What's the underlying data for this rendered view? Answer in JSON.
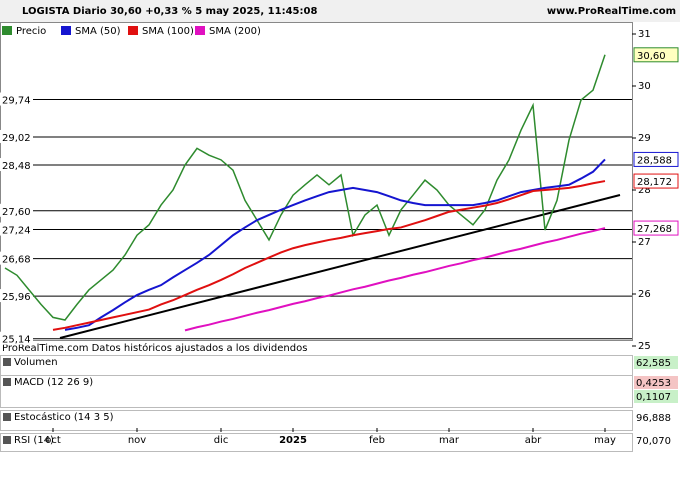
{
  "header": {
    "title": "LOGISTA Diario 30,60 +0,33 % 5 may 2025, 11:45:08",
    "site": "www.ProRealTime.com"
  },
  "footer": "ProRealTime.com Datos históricos ajustados a los dividendos",
  "chart_data": {
    "type": "line",
    "categories": [
      null,
      null,
      null,
      null,
      "oct",
      null,
      null,
      null,
      null,
      null,
      null,
      "nov",
      null,
      null,
      null,
      null,
      null,
      null,
      "dic",
      null,
      null,
      null,
      null,
      null,
      "2025",
      null,
      null,
      null,
      null,
      null,
      null,
      "feb",
      null,
      null,
      null,
      null,
      null,
      "mar",
      null,
      null,
      null,
      null,
      null,
      null,
      "abr",
      null,
      null,
      null,
      null,
      null,
      "may"
    ],
    "series": [
      {
        "name": "Precio",
        "color": "#2e8b2e",
        "last_label": "30,60",
        "values": [
          26.5,
          26.36,
          26.08,
          25.8,
          25.55,
          25.5,
          25.8,
          26.08,
          26.27,
          26.46,
          26.75,
          27.13,
          27.33,
          27.71,
          28.0,
          28.48,
          28.8,
          28.67,
          28.58,
          28.38,
          27.8,
          27.42,
          27.04,
          27.52,
          27.9,
          28.1,
          28.29,
          28.1,
          28.29,
          27.13,
          27.52,
          27.71,
          27.13,
          27.62,
          27.9,
          28.19,
          28.0,
          27.71,
          27.52,
          27.33,
          27.62,
          28.19,
          28.58,
          29.15,
          29.63,
          27.23,
          27.8,
          28.96,
          29.73,
          29.92,
          30.6
        ]
      },
      {
        "name": "SMA (50)",
        "color": "#1515d0",
        "last_label": "28,588",
        "values": [
          null,
          null,
          null,
          null,
          null,
          25.31,
          25.35,
          25.4,
          25.55,
          25.69,
          25.84,
          25.98,
          26.08,
          26.17,
          26.32,
          26.46,
          26.6,
          26.75,
          26.94,
          27.13,
          27.28,
          27.42,
          27.52,
          27.62,
          27.71,
          27.8,
          27.88,
          27.96,
          28.0,
          28.04,
          28.0,
          27.96,
          27.88,
          27.8,
          27.75,
          27.71,
          27.71,
          27.71,
          27.71,
          27.71,
          27.75,
          27.8,
          27.88,
          27.96,
          28.0,
          28.04,
          28.07,
          28.1,
          28.22,
          28.35,
          28.588
        ]
      },
      {
        "name": "SMA (100)",
        "color": "#e01010",
        "last_label": "28,172",
        "values": [
          null,
          null,
          null,
          null,
          25.31,
          25.35,
          25.4,
          25.45,
          25.5,
          25.55,
          25.6,
          25.65,
          25.7,
          25.8,
          25.88,
          25.98,
          26.08,
          26.17,
          26.27,
          26.38,
          26.5,
          26.6,
          26.7,
          26.8,
          26.88,
          26.94,
          26.99,
          27.04,
          27.08,
          27.13,
          27.17,
          27.21,
          27.25,
          27.28,
          27.35,
          27.42,
          27.5,
          27.58,
          27.62,
          27.66,
          27.7,
          27.75,
          27.82,
          27.9,
          27.98,
          28.0,
          28.02,
          28.04,
          28.08,
          28.13,
          28.172
        ]
      },
      {
        "name": "SMA (200)",
        "color": "#e010c0",
        "last_label": "27,268",
        "values": [
          null,
          null,
          null,
          null,
          null,
          null,
          null,
          null,
          null,
          null,
          null,
          null,
          null,
          null,
          null,
          25.3,
          25.36,
          25.41,
          25.47,
          25.52,
          25.58,
          25.64,
          25.69,
          25.75,
          25.81,
          25.86,
          25.92,
          25.97,
          26.03,
          26.09,
          26.14,
          26.2,
          26.26,
          26.31,
          26.37,
          26.42,
          26.48,
          26.54,
          26.59,
          26.65,
          26.7,
          26.76,
          26.82,
          26.87,
          26.93,
          26.99,
          27.04,
          27.1,
          27.16,
          27.21,
          27.268
        ]
      }
    ],
    "ylim": [
      25,
      31.25
    ],
    "yticks": [
      25,
      26,
      27,
      28,
      29,
      30,
      31
    ],
    "levels": [
      {
        "value": 29.74,
        "label": "29,74"
      },
      {
        "value": 29.02,
        "label": "29,02"
      },
      {
        "value": 28.48,
        "label": "28,48"
      },
      {
        "value": 27.6,
        "label": "27,60"
      },
      {
        "value": 27.24,
        "label": "27,24"
      },
      {
        "value": 26.68,
        "label": "26,68"
      },
      {
        "value": 25.96,
        "label": "25,96"
      },
      {
        "value": 25.14,
        "label": "25,14"
      }
    ]
  },
  "panels": [
    {
      "name": "Volumen",
      "labels": [
        {
          "text": "62,585",
          "color": "#c8f0c8"
        }
      ]
    },
    {
      "name": "MACD (12 26 9)",
      "labels": [
        {
          "text": "0,4253",
          "color": "#f4c4c4"
        },
        {
          "text": "0,1107",
          "color": "#c8f0c8"
        }
      ]
    },
    {
      "name": "Estocástico (14 3 5)",
      "labels": [
        {
          "text": "96,888",
          "color": "#ffffff"
        }
      ]
    },
    {
      "name": "RSI (14)",
      "labels": [
        {
          "text": "70,070",
          "color": "#ffffff"
        }
      ]
    }
  ]
}
